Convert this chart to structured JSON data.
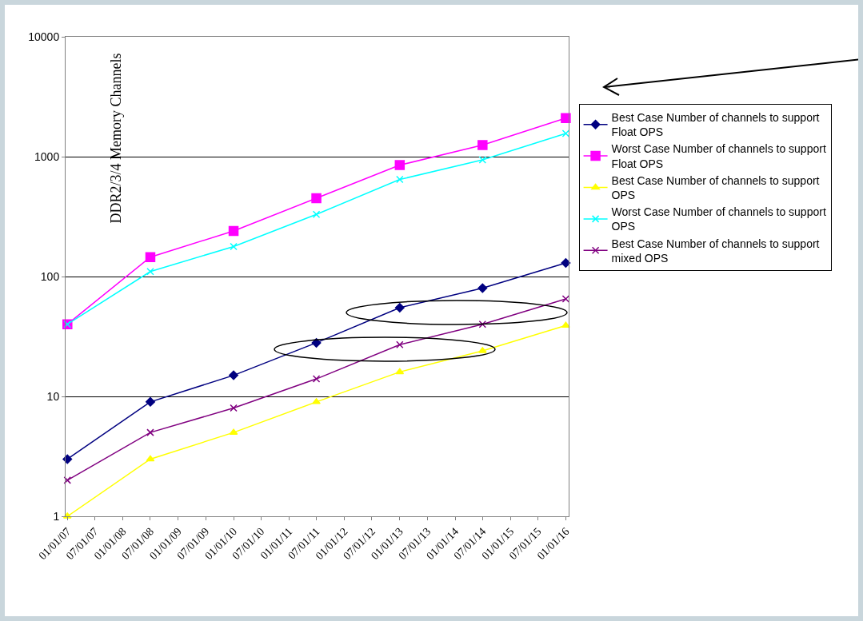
{
  "chart_data": {
    "type": "line",
    "log": "y",
    "grid": "y",
    "legend": "right",
    "annotations": [
      "DDR2/3/4 Memory Channels"
    ],
    "x": [
      "2007-01-01",
      "2008-07-01",
      "2010-01-01",
      "2011-07-01",
      "2013-01-01",
      "2014-07-01",
      "2016-01-01"
    ],
    "xlim": [
      "2006-12-20",
      "2016-01-20"
    ],
    "xticks": [
      {
        "value": "2007-01-01",
        "label": "01/01/07"
      },
      {
        "value": "2007-07-01",
        "label": "07/01/07"
      },
      {
        "value": "2008-01-01",
        "label": "01/01/08"
      },
      {
        "value": "2008-07-01",
        "label": "07/01/08"
      },
      {
        "value": "2009-01-01",
        "label": "01/01/09"
      },
      {
        "value": "2009-07-01",
        "label": "07/01/09"
      },
      {
        "value": "2010-01-01",
        "label": "01/01/10"
      },
      {
        "value": "2010-07-01",
        "label": "07/01/10"
      },
      {
        "value": "2011-01-01",
        "label": "01/01/11"
      },
      {
        "value": "2011-07-01",
        "label": "07/01/11"
      },
      {
        "value": "2012-01-01",
        "label": "01/01/12"
      },
      {
        "value": "2012-07-01",
        "label": "07/01/12"
      },
      {
        "value": "2013-01-01",
        "label": "01/01/13"
      },
      {
        "value": "2013-07-01",
        "label": "07/01/13"
      },
      {
        "value": "2014-01-01",
        "label": "01/01/14"
      },
      {
        "value": "2014-07-01",
        "label": "07/01/14"
      },
      {
        "value": "2015-01-01",
        "label": "01/01/15"
      },
      {
        "value": "2015-07-01",
        "label": "07/01/15"
      },
      {
        "value": "2016-01-01",
        "label": "01/01/16"
      }
    ],
    "ylim": [
      1,
      10000
    ],
    "yticks": [
      1,
      10,
      100,
      1000,
      10000
    ],
    "series": [
      {
        "name": "Best Case Number of channels to support Float OPS",
        "color": "#000080",
        "marker": "diamond",
        "values": [
          3,
          9,
          15,
          28,
          55,
          80,
          130
        ]
      },
      {
        "name": "Worst Case Number of channels to support Float OPS",
        "color": "#ff00ff",
        "marker": "square",
        "values": [
          40,
          145,
          240,
          450,
          850,
          1250,
          2100
        ]
      },
      {
        "name": "Best Case Number of channels to support OPS",
        "color": "#ffff00",
        "marker": "triangle",
        "values": [
          1,
          3,
          5,
          9,
          16,
          24,
          39
        ]
      },
      {
        "name": "Worst Case Number of channels to support OPS",
        "color": "#00ffff",
        "marker": "cross",
        "values": [
          40,
          110,
          178,
          330,
          645,
          940,
          1560
        ]
      },
      {
        "name": "Best Case Number of channels to support mixed OPS",
        "color": "#800080",
        "marker": "cross",
        "values": [
          2,
          5,
          8,
          14,
          27,
          40,
          65
        ]
      }
    ]
  }
}
